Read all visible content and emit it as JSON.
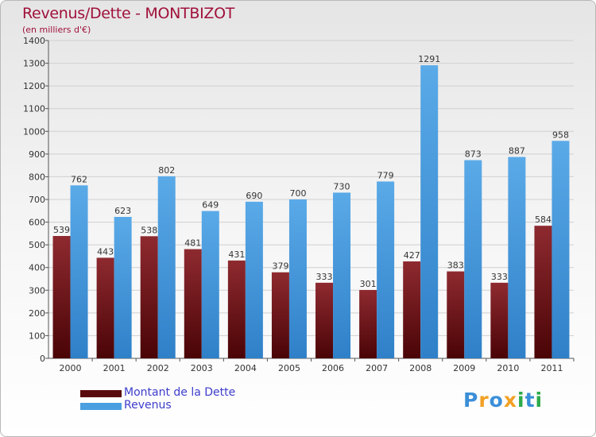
{
  "header": {
    "title": "Revenus/Dette - MONTBIZOT",
    "subtitle": "(en milliers d'€)"
  },
  "chart_data": {
    "type": "bar",
    "categories": [
      "2000",
      "2001",
      "2002",
      "2003",
      "2004",
      "2005",
      "2006",
      "2007",
      "2008",
      "2009",
      "2010",
      "2011"
    ],
    "series": [
      {
        "name": "Montant de la Dette",
        "color": "#7a1820",
        "values": [
          539,
          443,
          538,
          481,
          431,
          379,
          333,
          301,
          427,
          383,
          333,
          584
        ]
      },
      {
        "name": "Revenus",
        "color": "#4a9fe0",
        "values": [
          762,
          623,
          802,
          649,
          690,
          700,
          730,
          779,
          1291,
          873,
          887,
          958
        ]
      }
    ],
    "y_ticks": [
      "0",
      "100",
      "200",
      "300",
      "400",
      "500",
      "600",
      "700",
      "800",
      "900",
      "1000",
      "1100",
      "1200",
      "1300",
      "1400"
    ],
    "ylim": [
      0,
      1400
    ],
    "grid": true,
    "legend_position": "bottom-left"
  },
  "legend": {
    "items": [
      {
        "label": "Montant de la Dette",
        "color": "#5a0a0e"
      },
      {
        "label": "Revenus",
        "color": "#4a9fe0"
      }
    ]
  },
  "brand": {
    "letters": [
      "P",
      "r",
      "o",
      "x",
      "i",
      "t",
      "i"
    ],
    "colors": [
      "#3b8fd8",
      "#f2a024",
      "#3b8fd8",
      "#f2a024",
      "#2eaa4a",
      "#3b8fd8",
      "#2eaa4a"
    ]
  }
}
